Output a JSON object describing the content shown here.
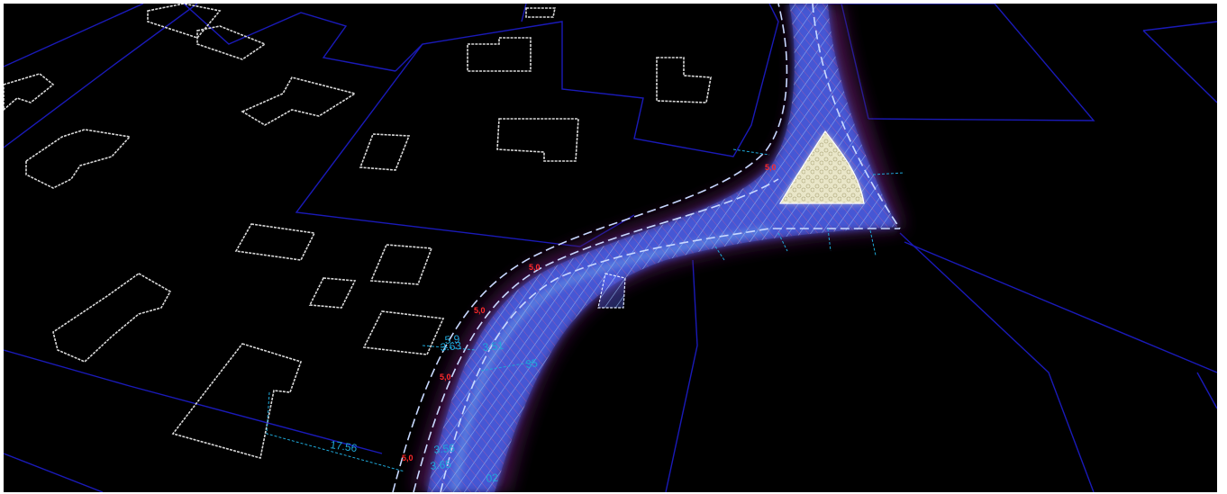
{
  "scene": {
    "background": "#000000",
    "parcel_color": "#1a1ab8",
    "building_color": "#d8d8d8",
    "road_edge_color": "#c8d8ff",
    "dimension_color": "#1fa8d8",
    "level_color": "#ff2a2a"
  },
  "dimensions": {
    "d1": "17.56",
    "d2": "3.56",
    "d3": "3.65",
    "d4": "02",
    "d5": "3.63",
    "d6": "5.9",
    "d7": "3.51",
    "d8": "35"
  },
  "level_marks": {
    "m1": "5,0",
    "m2": "5,0",
    "m3": "5,0",
    "m4": "5,0",
    "m5": "5,0"
  }
}
